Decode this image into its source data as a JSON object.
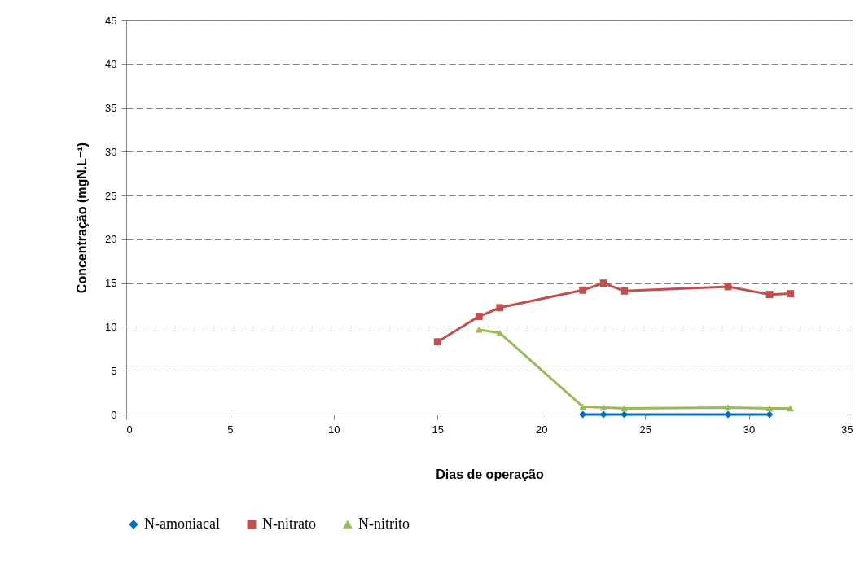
{
  "chart_data": {
    "type": "line",
    "xlabel": "Dias de operação",
    "ylabel": "Concentração (mgN.L⁻¹)",
    "xlim": [
      0,
      35
    ],
    "xticks": [
      0,
      5,
      10,
      15,
      20,
      25,
      30,
      35
    ],
    "ylim": [
      0,
      45
    ],
    "yticks": [
      0,
      5,
      10,
      15,
      20,
      25,
      30,
      35,
      40,
      45
    ],
    "grid": "y",
    "legend": "bottom",
    "line_style": "solid",
    "series": [
      {
        "name": "N-amoniacal",
        "color": "#0070c0",
        "marker": "diamond",
        "x": [
          22,
          23,
          24,
          29,
          31
        ],
        "values": [
          0,
          0,
          0,
          0,
          0
        ]
      },
      {
        "name": "N-nitrato",
        "color": "#c0504d",
        "marker": "square",
        "x": [
          15,
          17,
          18,
          22,
          23,
          24,
          29,
          31,
          32
        ],
        "values": [
          8.3,
          11.2,
          12.2,
          14.2,
          15.0,
          14.1,
          14.6,
          13.7,
          13.8
        ]
      },
      {
        "name": "N-nitrito",
        "color": "#9bbb59",
        "marker": "triangle",
        "x": [
          17,
          18,
          22,
          23,
          24,
          29,
          31,
          32
        ],
        "values": [
          9.7,
          9.3,
          0.9,
          0.8,
          0.7,
          0.8,
          0.7,
          0.7
        ]
      }
    ]
  }
}
